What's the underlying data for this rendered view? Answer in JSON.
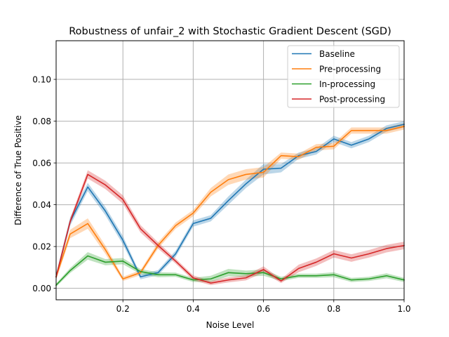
{
  "chart_data": {
    "type": "line",
    "title": "Robustness of unfair_2 with Stochastic Gradient Descent (SGD)",
    "xlabel": "Noise Level",
    "ylabel": "Difference of True Positive",
    "xlim": [
      0.01,
      1.0
    ],
    "ylim": [
      -0.0055,
      0.1185
    ],
    "xticks": [
      0.2,
      0.4,
      0.6,
      0.8,
      1.0
    ],
    "xtick_labels": [
      "0.2",
      "0.4",
      "0.6",
      "0.8",
      "1.0"
    ],
    "yticks": [
      0.0,
      0.02,
      0.04,
      0.06,
      0.08,
      0.1
    ],
    "ytick_labels": [
      "0.00",
      "0.02",
      "0.04",
      "0.06",
      "0.08",
      "0.10"
    ],
    "grid": true,
    "legend_position": "top-right",
    "x": [
      0.01,
      0.05,
      0.1,
      0.15,
      0.2,
      0.25,
      0.3,
      0.35,
      0.4,
      0.45,
      0.5,
      0.55,
      0.6,
      0.65,
      0.7,
      0.75,
      0.8,
      0.85,
      0.9,
      0.95,
      1.0
    ],
    "series": [
      {
        "name": "Baseline",
        "color": "#1f77b4",
        "values": [
          0.0055,
          0.032,
          0.0485,
          0.037,
          0.023,
          0.0055,
          0.0075,
          0.0165,
          0.031,
          0.0335,
          0.042,
          0.05,
          0.057,
          0.0575,
          0.0635,
          0.0655,
          0.0715,
          0.0685,
          0.0715,
          0.0765,
          0.0785
        ],
        "band": [
          0.0015,
          0.002,
          0.002,
          0.002,
          0.002,
          0.0012,
          0.0012,
          0.0015,
          0.0015,
          0.0015,
          0.002,
          0.002,
          0.0025,
          0.002,
          0.0015,
          0.0015,
          0.0015,
          0.0015,
          0.0015,
          0.0015,
          0.0015
        ]
      },
      {
        "name": "Pre-processing",
        "color": "#ff7f0e",
        "values": [
          0.0055,
          0.026,
          0.031,
          0.0185,
          0.0045,
          0.0075,
          0.0205,
          0.03,
          0.036,
          0.046,
          0.052,
          0.0545,
          0.0555,
          0.0635,
          0.063,
          0.0675,
          0.068,
          0.0755,
          0.0755,
          0.0755,
          0.0775
        ],
        "band": [
          0.0015,
          0.002,
          0.0025,
          0.002,
          0.001,
          0.0012,
          0.0015,
          0.0015,
          0.0015,
          0.002,
          0.0025,
          0.0025,
          0.0025,
          0.0015,
          0.0015,
          0.0015,
          0.0015,
          0.0015,
          0.0015,
          0.0015,
          0.0015
        ]
      },
      {
        "name": "In-processing",
        "color": "#2ca02c",
        "values": [
          0.0015,
          0.0085,
          0.0155,
          0.0125,
          0.013,
          0.008,
          0.0065,
          0.0065,
          0.004,
          0.0045,
          0.0075,
          0.007,
          0.0075,
          0.0045,
          0.006,
          0.006,
          0.0065,
          0.004,
          0.0045,
          0.006,
          0.004
        ],
        "band": [
          0.0008,
          0.0012,
          0.0018,
          0.0015,
          0.0015,
          0.0012,
          0.0012,
          0.001,
          0.001,
          0.0015,
          0.0018,
          0.0015,
          0.0015,
          0.001,
          0.001,
          0.001,
          0.0012,
          0.001,
          0.001,
          0.0012,
          0.001
        ]
      },
      {
        "name": "Post-processing",
        "color": "#d62728",
        "values": [
          0.0055,
          0.032,
          0.0545,
          0.0495,
          0.0425,
          0.0285,
          0.0205,
          0.013,
          0.005,
          0.0025,
          0.004,
          0.005,
          0.009,
          0.0035,
          0.0095,
          0.0125,
          0.0165,
          0.0145,
          0.0165,
          0.019,
          0.0205
        ],
        "band": [
          0.0012,
          0.0015,
          0.002,
          0.002,
          0.002,
          0.0018,
          0.0015,
          0.0012,
          0.0012,
          0.001,
          0.0012,
          0.0012,
          0.0015,
          0.001,
          0.0018,
          0.0018,
          0.0018,
          0.0018,
          0.0018,
          0.0018,
          0.0018
        ]
      }
    ]
  }
}
